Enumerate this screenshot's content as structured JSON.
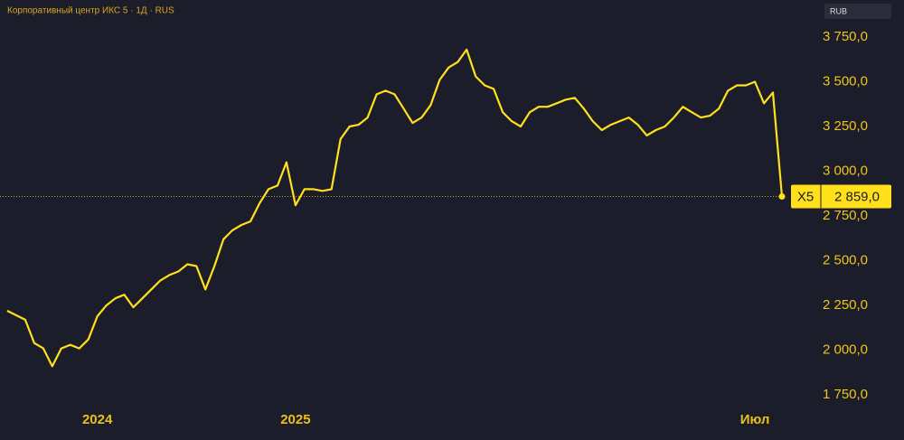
{
  "chart_data": {
    "type": "line",
    "title": "Корпоративный центр ИКС 5 · 1Д · RUS",
    "currency": "RUB",
    "categories": [
      null,
      null,
      null,
      null,
      null,
      null,
      null,
      null,
      null,
      null,
      "2024",
      null,
      null,
      null,
      null,
      null,
      null,
      null,
      null,
      null,
      null,
      null,
      null,
      null,
      null,
      null,
      null,
      null,
      null,
      null,
      null,
      null,
      "2025",
      null,
      null,
      null,
      null,
      null,
      null,
      null,
      null,
      null,
      null,
      null,
      null,
      null,
      null,
      null,
      null,
      null,
      null,
      null,
      null,
      null,
      null,
      null,
      null,
      null,
      null,
      null,
      null,
      null,
      null,
      null,
      null,
      null,
      null,
      null,
      null,
      null,
      null,
      null,
      null,
      null,
      null,
      null,
      null,
      null,
      null,
      null,
      null,
      null,
      null,
      "Июл",
      null,
      null,
      null
    ],
    "series": [
      {
        "name": "X5",
        "color": "#ffe01a",
        "values": [
          2220,
          2195,
          2170,
          2040,
          2010,
          1910,
          2010,
          2030,
          2010,
          2060,
          2190,
          2250,
          2290,
          2310,
          2240,
          2290,
          2340,
          2390,
          2420,
          2440,
          2480,
          2470,
          2340,
          2470,
          2620,
          2670,
          2700,
          2720,
          2820,
          2900,
          2920,
          3050,
          2810,
          2900,
          2900,
          2890,
          2900,
          3180,
          3250,
          3260,
          3300,
          3430,
          3450,
          3430,
          3350,
          3270,
          3300,
          3370,
          3510,
          3580,
          3610,
          3680,
          3530,
          3480,
          3460,
          3330,
          3280,
          3250,
          3330,
          3360,
          3360,
          3380,
          3400,
          3410,
          3350,
          3280,
          3230,
          3260,
          3280,
          3300,
          3260,
          3200,
          3230,
          3250,
          3300,
          3360,
          3330,
          3300,
          3310,
          3350,
          3450,
          3480,
          3480,
          3500,
          3380,
          3440,
          2859
        ]
      }
    ],
    "last_price": {
      "value": 2859,
      "label": "2 859,0"
    },
    "ylim": [
      1685,
      3957
    ],
    "yticks": [
      {
        "value": 1750,
        "label": "1 750,0"
      },
      {
        "value": 2000,
        "label": "2 000,0"
      },
      {
        "value": 2250,
        "label": "2 250,0"
      },
      {
        "value": 2500,
        "label": "2 500,0"
      },
      {
        "value": 2750,
        "label": "2 750,0"
      },
      {
        "value": 3000,
        "label": "3 000,0"
      },
      {
        "value": 3250,
        "label": "3 250,0"
      },
      {
        "value": 3500,
        "label": "3 500,0"
      },
      {
        "value": 3750,
        "label": "3 750,0"
      }
    ]
  }
}
